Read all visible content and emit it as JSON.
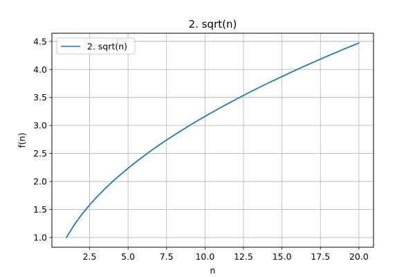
{
  "chart_data": {
    "type": "line",
    "title": "2. sqrt(n)",
    "xlabel": "n",
    "ylabel": "f(n)",
    "xlim": [
      0.05,
      20.95
    ],
    "ylim": [
      0.8263,
      4.646
    ],
    "xticks": [
      2.5,
      5.0,
      7.5,
      10.0,
      12.5,
      15.0,
      17.5,
      20.0
    ],
    "xtick_labels": [
      "2.5",
      "5.0",
      "7.5",
      "10.0",
      "12.5",
      "15.0",
      "17.5",
      "20.0"
    ],
    "yticks": [
      1.0,
      1.5,
      2.0,
      2.5,
      3.0,
      3.5,
      4.0,
      4.5
    ],
    "ytick_labels": [
      "1.0",
      "1.5",
      "2.0",
      "2.5",
      "3.0",
      "3.5",
      "4.0",
      "4.5"
    ],
    "grid": true,
    "legend_position": "top-left",
    "series": [
      {
        "name": "2. sqrt(n)",
        "color": "#1f77b4",
        "x": [
          1,
          1.5,
          2,
          2.5,
          3,
          3.5,
          4,
          4.5,
          5,
          5.5,
          6,
          6.5,
          7,
          7.5,
          8,
          8.5,
          9,
          9.5,
          10,
          10.5,
          11,
          11.5,
          12,
          12.5,
          13,
          13.5,
          14,
          14.5,
          15,
          15.5,
          16,
          16.5,
          17,
          17.5,
          18,
          18.5,
          19,
          19.5,
          20
        ],
        "y": [
          1.0,
          1.225,
          1.414,
          1.581,
          1.732,
          1.871,
          2.0,
          2.121,
          2.236,
          2.345,
          2.449,
          2.55,
          2.646,
          2.739,
          2.828,
          2.915,
          3.0,
          3.082,
          3.162,
          3.24,
          3.317,
          3.391,
          3.464,
          3.536,
          3.606,
          3.674,
          3.742,
          3.808,
          3.873,
          3.937,
          4.0,
          4.062,
          4.123,
          4.183,
          4.243,
          4.301,
          4.359,
          4.416,
          4.472
        ]
      }
    ]
  }
}
